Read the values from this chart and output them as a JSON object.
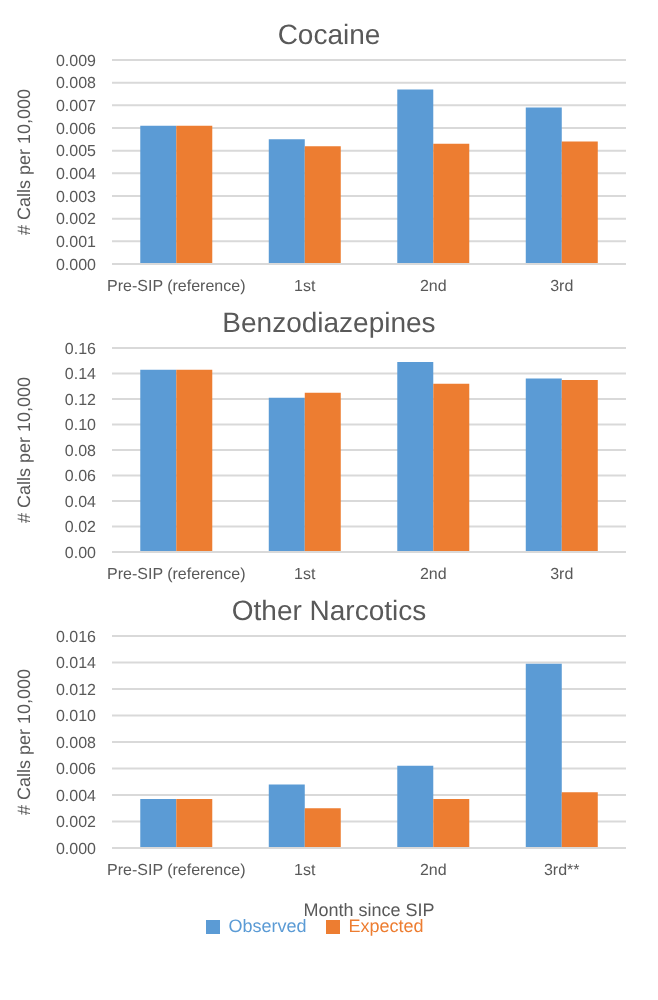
{
  "chart_data": [
    {
      "type": "bar",
      "title": "Cocaine",
      "ylabel": "# Calls per 10,000",
      "categories": [
        "Pre-SIP (reference)",
        "1st",
        "2nd",
        "3rd"
      ],
      "series": [
        {
          "color": "#5b9bd5",
          "values": [
            0.0061,
            0.0055,
            0.0077,
            0.0069
          ]
        },
        {
          "color": "#ed7d31",
          "values": [
            0.0061,
            0.0052,
            0.0053,
            0.0054
          ]
        }
      ],
      "ylim": [
        0,
        0.009
      ],
      "yticks": [
        {
          "value": 0,
          "label": "0.000"
        },
        {
          "value": 0.001,
          "label": "0.001"
        },
        {
          "value": 0.002,
          "label": "0.002"
        },
        {
          "value": 0.003,
          "label": "0.003"
        },
        {
          "value": 0.004,
          "label": "0.004"
        },
        {
          "value": 0.005,
          "label": "0.005"
        },
        {
          "value": 0.006,
          "label": "0.006"
        },
        {
          "value": 0.007,
          "label": "0.007"
        },
        {
          "value": 0.008,
          "label": "0.008"
        },
        {
          "value": 0.009,
          "label": "0.009"
        }
      ],
      "grid": "y",
      "legend": false
    },
    {
      "type": "bar",
      "title": "Benzodiazepines",
      "ylabel": "# Calls per 10,000",
      "categories": [
        "Pre-SIP (reference)",
        "1st",
        "2nd",
        "3rd"
      ],
      "series": [
        {
          "color": "#5b9bd5",
          "values": [
            0.143,
            0.121,
            0.149,
            0.136
          ]
        },
        {
          "color": "#ed7d31",
          "values": [
            0.143,
            0.125,
            0.132,
            0.135
          ]
        }
      ],
      "ylim": [
        0,
        0.16
      ],
      "yticks": [
        {
          "value": 0,
          "label": "0.00"
        },
        {
          "value": 0.02,
          "label": "0.02"
        },
        {
          "value": 0.04,
          "label": "0.04"
        },
        {
          "value": 0.06,
          "label": "0.06"
        },
        {
          "value": 0.08,
          "label": "0.08"
        },
        {
          "value": 0.1,
          "label": "0.10"
        },
        {
          "value": 0.12,
          "label": "0.12"
        },
        {
          "value": 0.14,
          "label": "0.14"
        },
        {
          "value": 0.16,
          "label": "0.16"
        }
      ],
      "grid": "y",
      "legend": false
    },
    {
      "type": "bar",
      "title": "Other Narcotics",
      "xlabel": "Month since SIP",
      "ylabel": "# Calls per 10,000",
      "categories": [
        "Pre-SIP (reference)",
        "1st",
        "2nd",
        "3rd**"
      ],
      "series": [
        {
          "name": "Observed",
          "color": "#5b9bd5",
          "values": [
            0.0037,
            0.0048,
            0.0062,
            0.0139
          ]
        },
        {
          "name": "Expected",
          "color": "#ed7d31",
          "values": [
            0.0037,
            0.003,
            0.0037,
            0.0042
          ]
        }
      ],
      "ylim": [
        0,
        0.016
      ],
      "yticks": [
        {
          "value": 0,
          "label": "0.000"
        },
        {
          "value": 0.002,
          "label": "0.002"
        },
        {
          "value": 0.004,
          "label": "0.004"
        },
        {
          "value": 0.006,
          "label": "0.006"
        },
        {
          "value": 0.008,
          "label": "0.008"
        },
        {
          "value": 0.01,
          "label": "0.010"
        },
        {
          "value": 0.012,
          "label": "0.012"
        },
        {
          "value": 0.014,
          "label": "0.014"
        },
        {
          "value": 0.016,
          "label": "0.016"
        }
      ],
      "grid": "y",
      "legend": "bottom"
    }
  ]
}
